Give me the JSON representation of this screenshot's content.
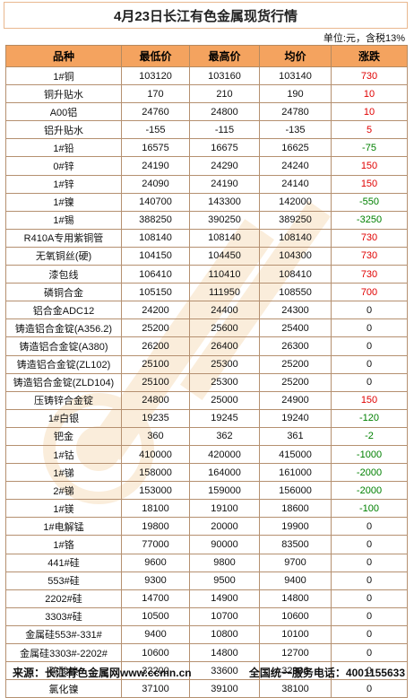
{
  "title": "4月23日长江有色金属现货行情",
  "unit_note": "单位:元，含税13%",
  "headers": [
    "品种",
    "最低价",
    "最高价",
    "均价",
    "涨跌"
  ],
  "colors": {
    "header_bg": "#f4a35f",
    "up": "#e00000",
    "down": "#008000",
    "neutral": "#111111"
  },
  "rows": [
    {
      "name": "1#铜",
      "low": "103120",
      "high": "103160",
      "avg": "103140",
      "chg": "730",
      "dir": "up"
    },
    {
      "name": "铜升贴水",
      "low": "170",
      "high": "210",
      "avg": "190",
      "chg": "10",
      "dir": "up"
    },
    {
      "name": "A00铝",
      "low": "24760",
      "high": "24800",
      "avg": "24780",
      "chg": "10",
      "dir": "up"
    },
    {
      "name": "铝升贴水",
      "low": "-155",
      "high": "-115",
      "avg": "-135",
      "chg": "5",
      "dir": "up"
    },
    {
      "name": "1#铅",
      "low": "16575",
      "high": "16675",
      "avg": "16625",
      "chg": "-75",
      "dir": "down"
    },
    {
      "name": "0#锌",
      "low": "24190",
      "high": "24290",
      "avg": "24240",
      "chg": "150",
      "dir": "up"
    },
    {
      "name": "1#锌",
      "low": "24090",
      "high": "24190",
      "avg": "24140",
      "chg": "150",
      "dir": "up"
    },
    {
      "name": "1#镍",
      "low": "140700",
      "high": "143300",
      "avg": "142000",
      "chg": "-550",
      "dir": "down"
    },
    {
      "name": "1#锡",
      "low": "388250",
      "high": "390250",
      "avg": "389250",
      "chg": "-3250",
      "dir": "down"
    },
    {
      "name": "R410A专用紫铜管",
      "low": "108140",
      "high": "108140",
      "avg": "108140",
      "chg": "730",
      "dir": "up"
    },
    {
      "name": "无氧铜丝(硬)",
      "low": "104150",
      "high": "104450",
      "avg": "104300",
      "chg": "730",
      "dir": "up"
    },
    {
      "name": "漆包线",
      "low": "106410",
      "high": "110410",
      "avg": "108410",
      "chg": "730",
      "dir": "up"
    },
    {
      "name": "磷铜合金",
      "low": "105150",
      "high": "111950",
      "avg": "108550",
      "chg": "700",
      "dir": "up"
    },
    {
      "name": "铝合金ADC12",
      "low": "24200",
      "high": "24400",
      "avg": "24300",
      "chg": "0",
      "dir": "flat"
    },
    {
      "name": "铸造铝合金锭(A356.2)",
      "low": "25200",
      "high": "25600",
      "avg": "25400",
      "chg": "0",
      "dir": "flat"
    },
    {
      "name": "铸造铝合金锭(A380)",
      "low": "26200",
      "high": "26400",
      "avg": "26300",
      "chg": "0",
      "dir": "flat"
    },
    {
      "name": "铸造铝合金锭(ZL102)",
      "low": "25100",
      "high": "25300",
      "avg": "25200",
      "chg": "0",
      "dir": "flat"
    },
    {
      "name": "铸造铝合金锭(ZLD104)",
      "low": "25100",
      "high": "25300",
      "avg": "25200",
      "chg": "0",
      "dir": "flat"
    },
    {
      "name": "压铸锌合金锭",
      "low": "24800",
      "high": "25000",
      "avg": "24900",
      "chg": "150",
      "dir": "up"
    },
    {
      "name": "1#白银",
      "low": "19235",
      "high": "19245",
      "avg": "19240",
      "chg": "-120",
      "dir": "down"
    },
    {
      "name": "钯金",
      "low": "360",
      "high": "362",
      "avg": "361",
      "chg": "-2",
      "dir": "down"
    },
    {
      "name": "1#钴",
      "low": "410000",
      "high": "420000",
      "avg": "415000",
      "chg": "-1000",
      "dir": "down"
    },
    {
      "name": "1#锑",
      "low": "158000",
      "high": "164000",
      "avg": "161000",
      "chg": "-2000",
      "dir": "down"
    },
    {
      "name": "2#锑",
      "low": "153000",
      "high": "159000",
      "avg": "156000",
      "chg": "-2000",
      "dir": "down"
    },
    {
      "name": "1#镁",
      "low": "18100",
      "high": "19100",
      "avg": "18600",
      "chg": "-100",
      "dir": "down"
    },
    {
      "name": "1#电解锰",
      "low": "19800",
      "high": "20000",
      "avg": "19900",
      "chg": "0",
      "dir": "flat"
    },
    {
      "name": "1#铬",
      "low": "77000",
      "high": "90000",
      "avg": "83500",
      "chg": "0",
      "dir": "flat"
    },
    {
      "name": "441#硅",
      "low": "9600",
      "high": "9800",
      "avg": "9700",
      "chg": "0",
      "dir": "flat"
    },
    {
      "name": "553#硅",
      "low": "9300",
      "high": "9500",
      "avg": "9400",
      "chg": "0",
      "dir": "flat"
    },
    {
      "name": "2202#硅",
      "low": "14700",
      "high": "14900",
      "avg": "14800",
      "chg": "0",
      "dir": "flat"
    },
    {
      "name": "3303#硅",
      "low": "10500",
      "high": "10700",
      "avg": "10600",
      "chg": "0",
      "dir": "flat"
    },
    {
      "name": "金属硅553#-331#",
      "low": "9400",
      "high": "10800",
      "avg": "10100",
      "chg": "0",
      "dir": "flat"
    },
    {
      "name": "金属硅3303#-2202#",
      "low": "10600",
      "high": "14800",
      "avg": "12700",
      "chg": "0",
      "dir": "flat"
    },
    {
      "name": "硫酸镍",
      "low": "32200",
      "high": "33600",
      "avg": "32900",
      "chg": "0",
      "dir": "flat"
    },
    {
      "name": "氯化镍",
      "low": "37100",
      "high": "39100",
      "avg": "38100",
      "chg": "0",
      "dir": "flat"
    }
  ],
  "footer": {
    "source": "来源：长江有色金属网www.ccmn.cn",
    "hotline": "全国统一服务电话：4001155633"
  }
}
